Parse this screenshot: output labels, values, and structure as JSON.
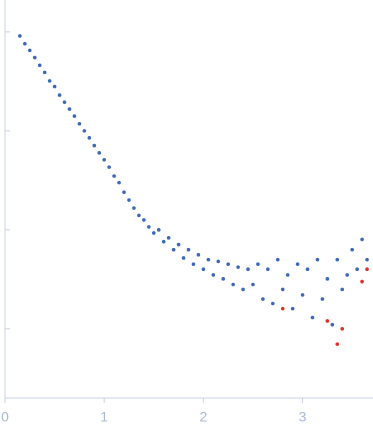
{
  "chart_data": {
    "type": "scatter",
    "log_y": true,
    "xlim": [
      0,
      3.7
    ],
    "xticks": [
      0,
      1,
      2,
      3
    ],
    "ylim": [
      0.0002,
      2.1
    ],
    "yticks": [
      1,
      0.1,
      0.01,
      0.001
    ],
    "series": [
      {
        "color": "#3d68b8",
        "x": [
          0.15,
          0.2,
          0.25,
          0.3,
          0.35,
          0.4,
          0.45,
          0.5,
          0.55,
          0.6,
          0.65,
          0.7,
          0.75,
          0.8,
          0.85,
          0.9,
          0.95,
          1.0,
          1.05,
          1.1,
          1.15,
          1.2,
          1.25,
          1.3,
          1.35,
          1.4,
          1.45,
          1.5,
          1.55,
          1.6,
          1.65,
          1.7,
          1.75,
          1.8,
          1.85,
          1.9,
          1.95,
          2.0,
          2.05,
          2.1,
          2.15,
          2.2,
          2.25,
          2.3,
          2.35,
          2.4,
          2.45,
          2.5,
          2.55,
          2.6,
          2.65,
          2.7,
          2.75,
          2.8,
          2.85,
          2.9,
          2.95,
          3.0,
          3.05,
          3.1,
          3.15,
          3.2,
          3.25,
          3.3,
          3.35,
          3.4,
          3.45,
          3.5,
          3.55,
          3.6,
          3.65
        ],
        "values": [
          0.91,
          0.76,
          0.65,
          0.55,
          0.46,
          0.39,
          0.32,
          0.28,
          0.23,
          0.195,
          0.166,
          0.141,
          0.118,
          0.1,
          0.085,
          0.071,
          0.06,
          0.051,
          0.043,
          0.035,
          0.03,
          0.024,
          0.02,
          0.0166,
          0.014,
          0.0126,
          0.0107,
          0.0093,
          0.01,
          0.0076,
          0.0083,
          0.0063,
          0.0071,
          0.0052,
          0.0063,
          0.0045,
          0.0056,
          0.004,
          0.005,
          0.0035,
          0.0048,
          0.0032,
          0.0045,
          0.0028,
          0.0042,
          0.0025,
          0.004,
          0.0028,
          0.0045,
          0.002,
          0.004,
          0.0018,
          0.005,
          0.0025,
          0.0035,
          0.0016,
          0.0045,
          0.0022,
          0.004,
          0.0013,
          0.005,
          0.002,
          0.0032,
          0.0011,
          0.005,
          0.0025,
          0.0035,
          0.0063,
          0.004,
          0.008,
          0.005
        ]
      },
      {
        "color": "#e0302a",
        "x": [
          2.8,
          3.25,
          3.35,
          3.4,
          3.6,
          3.65
        ],
        "values": [
          0.0016,
          0.0012,
          0.0007,
          0.001,
          0.003,
          0.004
        ]
      }
    ]
  }
}
